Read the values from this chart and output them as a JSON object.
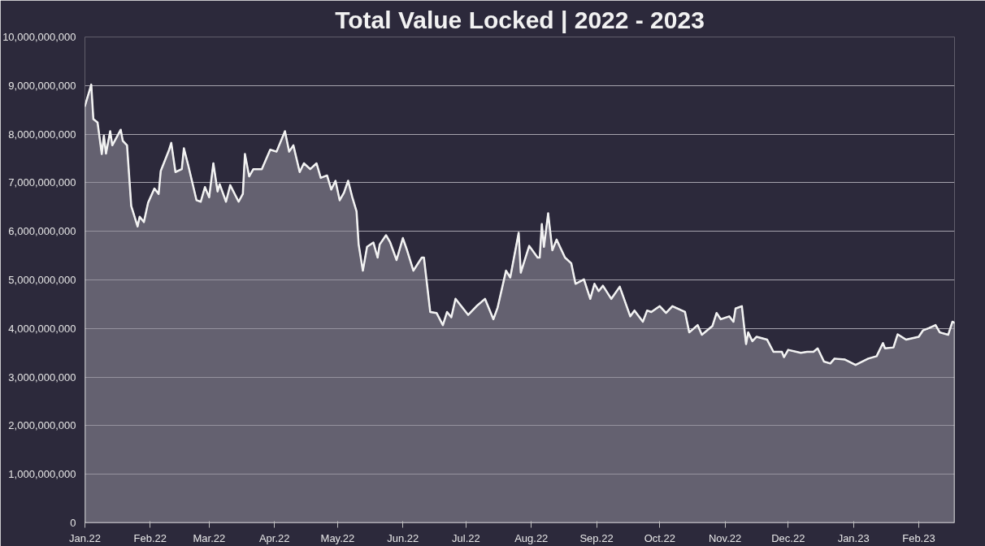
{
  "chart_data": {
    "type": "area",
    "title": "Total Value Locked | 2022 - 2023",
    "x": [
      "2022-01-01",
      "2022-01-04",
      "2022-01-05",
      "2022-01-07",
      "2022-01-09",
      "2022-01-10",
      "2022-01-11",
      "2022-01-13",
      "2022-01-14",
      "2022-01-18",
      "2022-01-19",
      "2022-01-21",
      "2022-01-23",
      "2022-01-26",
      "2022-01-27",
      "2022-01-29",
      "2022-01-31",
      "2022-02-03",
      "2022-02-05",
      "2022-02-06",
      "2022-02-10",
      "2022-02-11",
      "2022-02-13",
      "2022-02-16",
      "2022-02-17",
      "2022-02-19",
      "2022-02-23",
      "2022-02-25",
      "2022-02-27",
      "2022-03-01",
      "2022-03-03",
      "2022-03-05",
      "2022-03-06",
      "2022-03-09",
      "2022-03-11",
      "2022-03-15",
      "2022-03-17",
      "2022-03-18",
      "2022-03-20",
      "2022-03-22",
      "2022-03-26",
      "2022-03-30",
      "2022-04-02",
      "2022-04-06",
      "2022-04-08",
      "2022-04-10",
      "2022-04-13",
      "2022-04-15",
      "2022-04-18",
      "2022-04-21",
      "2022-04-23",
      "2022-04-26",
      "2022-04-28",
      "2022-04-30",
      "2022-05-02",
      "2022-05-04",
      "2022-05-06",
      "2022-05-08",
      "2022-05-10",
      "2022-05-11",
      "2022-05-13",
      "2022-05-15",
      "2022-05-18",
      "2022-05-20",
      "2022-05-21",
      "2022-05-24",
      "2022-05-26",
      "2022-05-29",
      "2022-06-01",
      "2022-06-03",
      "2022-06-06",
      "2022-06-10",
      "2022-06-11",
      "2022-06-14",
      "2022-06-17",
      "2022-06-20",
      "2022-06-22",
      "2022-06-24",
      "2022-06-26",
      "2022-07-02",
      "2022-07-06",
      "2022-07-10",
      "2022-07-14",
      "2022-07-16",
      "2022-07-20",
      "2022-07-22",
      "2022-07-26",
      "2022-07-27",
      "2022-07-31",
      "2022-08-04",
      "2022-08-05",
      "2022-08-06",
      "2022-08-07",
      "2022-08-09",
      "2022-08-11",
      "2022-08-13",
      "2022-08-17",
      "2022-08-20",
      "2022-08-22",
      "2022-08-26",
      "2022-08-29",
      "2022-08-31",
      "2022-09-02",
      "2022-09-04",
      "2022-09-08",
      "2022-09-12",
      "2022-09-17",
      "2022-09-19",
      "2022-09-23",
      "2022-09-25",
      "2022-09-27",
      "2022-10-01",
      "2022-10-04",
      "2022-10-07",
      "2022-10-13",
      "2022-10-15",
      "2022-10-19",
      "2022-10-21",
      "2022-10-26",
      "2022-10-28",
      "2022-10-30",
      "2022-11-03",
      "2022-11-05",
      "2022-11-06",
      "2022-11-09",
      "2022-11-11",
      "2022-11-12",
      "2022-11-14",
      "2022-11-16",
      "2022-11-21",
      "2022-11-24",
      "2022-11-28",
      "2022-11-29",
      "2022-12-01",
      "2022-12-07",
      "2022-12-10",
      "2022-12-13",
      "2022-12-15",
      "2022-12-18",
      "2022-12-21",
      "2022-12-23",
      "2022-12-28",
      "2023-01-02",
      "2023-01-08",
      "2023-01-12",
      "2023-01-15",
      "2023-01-16",
      "2023-01-20",
      "2023-01-22",
      "2023-01-26",
      "2023-02-01",
      "2023-02-03",
      "2023-02-06",
      "2023-02-09",
      "2023-02-11",
      "2023-02-15",
      "2023-02-17",
      "2023-02-18"
    ],
    "series": [
      {
        "color": "#f2f2f2",
        "values": [
          8580000000,
          9020000000,
          8310000000,
          8240000000,
          7590000000,
          7970000000,
          7600000000,
          8060000000,
          7770000000,
          8090000000,
          7860000000,
          7770000000,
          6520000000,
          6100000000,
          6300000000,
          6190000000,
          6590000000,
          6880000000,
          6770000000,
          7240000000,
          7680000000,
          7820000000,
          7220000000,
          7280000000,
          7710000000,
          7370000000,
          6640000000,
          6610000000,
          6910000000,
          6700000000,
          7400000000,
          6820000000,
          6970000000,
          6610000000,
          6950000000,
          6610000000,
          6770000000,
          7590000000,
          7130000000,
          7280000000,
          7280000000,
          7680000000,
          7640000000,
          8060000000,
          7640000000,
          7770000000,
          7220000000,
          7400000000,
          7280000000,
          7400000000,
          7100000000,
          7150000000,
          6860000000,
          7040000000,
          6640000000,
          6790000000,
          7040000000,
          6700000000,
          6410000000,
          5730000000,
          5190000000,
          5680000000,
          5770000000,
          5460000000,
          5730000000,
          5920000000,
          5770000000,
          5410000000,
          5860000000,
          5610000000,
          5190000000,
          5460000000,
          5460000000,
          4340000000,
          4320000000,
          4070000000,
          4340000000,
          4230000000,
          4610000000,
          4280000000,
          4460000000,
          4610000000,
          4190000000,
          4430000000,
          5190000000,
          5050000000,
          5970000000,
          5150000000,
          5700000000,
          5460000000,
          5460000000,
          6150000000,
          5680000000,
          6370000000,
          5610000000,
          5830000000,
          5460000000,
          5340000000,
          4920000000,
          5010000000,
          4610000000,
          4920000000,
          4770000000,
          4880000000,
          4610000000,
          4860000000,
          4250000000,
          4370000000,
          4140000000,
          4370000000,
          4340000000,
          4460000000,
          4320000000,
          4460000000,
          4340000000,
          3920000000,
          4070000000,
          3870000000,
          4050000000,
          4320000000,
          4190000000,
          4250000000,
          4140000000,
          4410000000,
          4460000000,
          3680000000,
          3920000000,
          3740000000,
          3830000000,
          3770000000,
          3520000000,
          3520000000,
          3410000000,
          3560000000,
          3500000000,
          3520000000,
          3520000000,
          3590000000,
          3320000000,
          3280000000,
          3380000000,
          3360000000,
          3250000000,
          3380000000,
          3430000000,
          3700000000,
          3590000000,
          3610000000,
          3880000000,
          3770000000,
          3830000000,
          3960000000,
          4010000000,
          4070000000,
          3920000000,
          3870000000,
          4140000000,
          4120000000
        ]
      }
    ],
    "xlim": [
      "2022-01-01",
      "2023-02-18"
    ],
    "xticks": [
      {
        "value": "2022-01-01",
        "label": "Jan.22"
      },
      {
        "value": "2022-02-01",
        "label": "Feb.22"
      },
      {
        "value": "2022-03-01",
        "label": "Mar.22"
      },
      {
        "value": "2022-04-01",
        "label": "Apr.22"
      },
      {
        "value": "2022-05-01",
        "label": "May.22"
      },
      {
        "value": "2022-06-01",
        "label": "Jun.22"
      },
      {
        "value": "2022-07-01",
        "label": "Jul.22"
      },
      {
        "value": "2022-08-01",
        "label": "Aug.22"
      },
      {
        "value": "2022-09-01",
        "label": "Sep.22"
      },
      {
        "value": "2022-10-01",
        "label": "Oct.22"
      },
      {
        "value": "2022-11-01",
        "label": "Nov.22"
      },
      {
        "value": "2022-12-01",
        "label": "Dec.22"
      },
      {
        "value": "2023-01-01",
        "label": "Jan.23"
      },
      {
        "value": "2023-02-01",
        "label": "Feb.23"
      }
    ],
    "ylim": [
      0,
      10000000000
    ],
    "yticks": [
      0,
      {
        "value": 1000000000,
        "label": "1,000,000,000"
      },
      {
        "value": 2000000000,
        "label": "2,000,000,000"
      },
      {
        "value": 3000000000,
        "label": "3,000,000,000"
      },
      {
        "value": 4000000000,
        "label": "4,000,000,000"
      },
      {
        "value": 5000000000,
        "label": "5,000,000,000"
      },
      {
        "value": 6000000000,
        "label": "6,000,000,000"
      },
      {
        "value": 7000000000,
        "label": "7,000,000,000"
      },
      {
        "value": 8000000000,
        "label": "8,000,000,000"
      },
      {
        "value": 9000000000,
        "label": "9,000,000,000"
      },
      {
        "value": 10000000000,
        "label": "10,000,000,000"
      }
    ],
    "grid": "y"
  }
}
